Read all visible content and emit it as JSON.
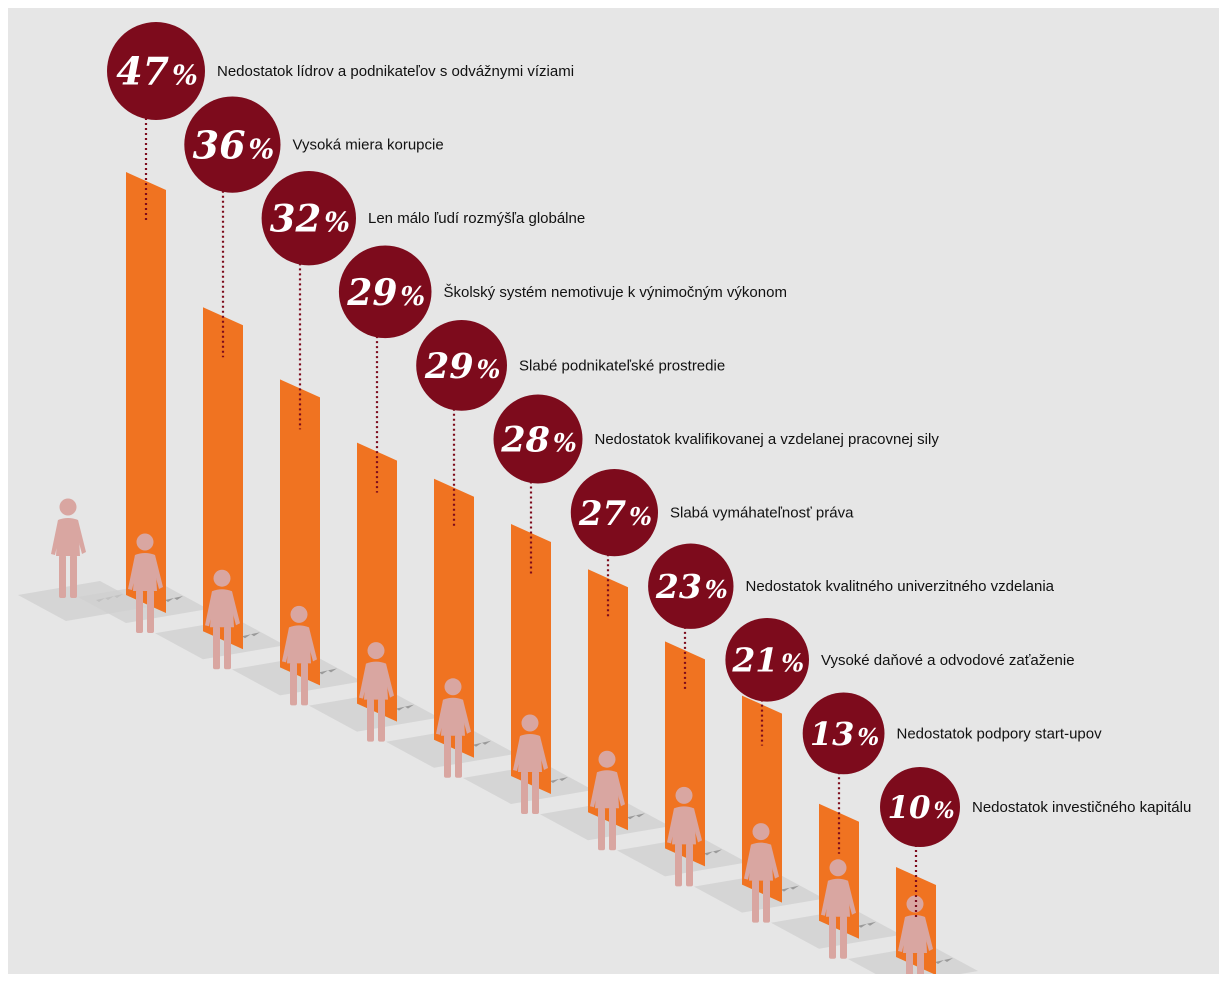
{
  "chart_data": {
    "type": "bar",
    "title": "",
    "xlabel": "",
    "ylabel": "",
    "ylim": [
      0,
      50
    ],
    "colors": {
      "bar": "#f07321",
      "bubble": "#7d0b1c",
      "person": "#d9a6a1",
      "floor": "#cfcfcf",
      "background": "#e6e6e6"
    },
    "items": [
      {
        "value": 47,
        "num": "47",
        "sign": "%",
        "label": "Nedostatok lídrov a podnikateľov s odvážnymi víziami"
      },
      {
        "value": 36,
        "num": "36",
        "sign": "%",
        "label": "Vysoká miera korupcie"
      },
      {
        "value": 32,
        "num": "32",
        "sign": "%",
        "label": "Len málo ľudí rozmýšľa globálne"
      },
      {
        "value": 29,
        "num": "29",
        "sign": "%",
        "label": "Školský systém nemotivuje k výnimočným výkonom"
      },
      {
        "value": 29,
        "num": "29",
        "sign": "%",
        "label": "Slabé podnikateľské prostredie"
      },
      {
        "value": 28,
        "num": "28",
        "sign": "%",
        "label": "Nedostatok kvalifikovanej a vzdelanej pracovnej sily"
      },
      {
        "value": 27,
        "num": "27",
        "sign": "%",
        "label": "Slabá vymáhateľnosť práva"
      },
      {
        "value": 23,
        "num": "23",
        "sign": "%",
        "label": "Nedostatok kvalitného univerzitného vzdelania"
      },
      {
        "value": 21,
        "num": "21",
        "sign": "%",
        "label": "Vysoké daňové a odvodové zaťaženie"
      },
      {
        "value": 13,
        "num": "13",
        "sign": "%",
        "label": "Nedostatok podpory start-upov"
      },
      {
        "value": 10,
        "num": "10",
        "sign": "%",
        "label": "Nedostatok investičného kapitálu"
      }
    ]
  }
}
